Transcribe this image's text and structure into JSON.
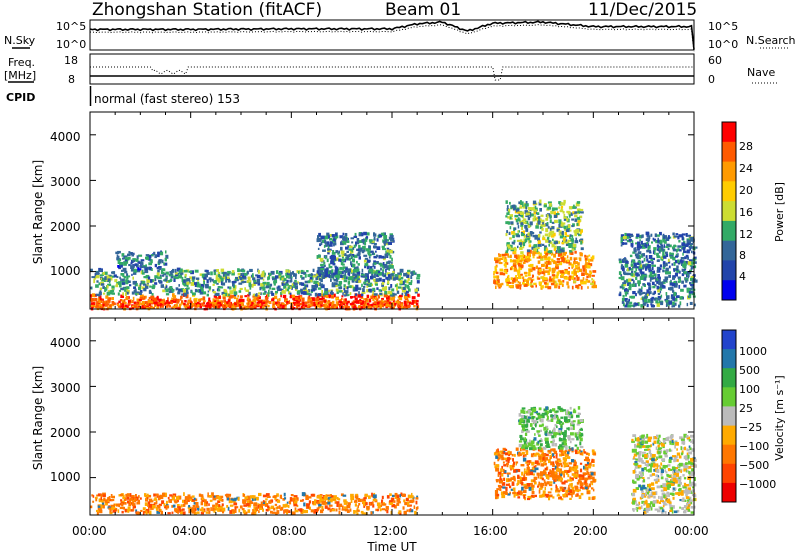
{
  "header": {
    "station": "Zhongshan Station (fitACF)",
    "beam": "Beam 01",
    "date": "11/Dec/2015"
  },
  "noise_panel": {
    "left_label": "N.Sky",
    "right_label": "N.Search",
    "y_ticks": [
      "10^5",
      "10^0"
    ],
    "right_ticks": [
      "10^5",
      "10^0"
    ]
  },
  "freq_panel": {
    "left_label_1": "Freq.",
    "left_label_2": "[MHz]",
    "left_ticks": [
      "18",
      "8"
    ],
    "right_ticks": [
      "60",
      "0"
    ],
    "right_label": "Nave"
  },
  "cpid_panel": {
    "label": "CPID",
    "text": "normal (fast stereo) 153"
  },
  "power_panel": {
    "ylabel": "Slant Range [km]",
    "y_ticks": [
      "4000",
      "3000",
      "2000",
      "1000"
    ],
    "colorbar_label": "Power [dB]",
    "colorbar_ticks": [
      "28",
      "24",
      "20",
      "16",
      "12",
      "8",
      "4"
    ],
    "colorbar_colors": [
      "#ff0000",
      "#ff5a00",
      "#ff9a00",
      "#ffcc00",
      "#ccdd33",
      "#33aa66",
      "#336699",
      "#2244aa",
      "#0000ee"
    ]
  },
  "velocity_panel": {
    "ylabel": "Slant Range [km]",
    "y_ticks": [
      "4000",
      "3000",
      "2000",
      "1000"
    ],
    "colorbar_label": "Velocity [m s⁻¹]",
    "colorbar_ticks": [
      "1000",
      "500",
      "100",
      "25",
      "−25",
      "−100",
      "−500",
      "−1000"
    ],
    "colorbar_colors": [
      "#2244cc",
      "#2277aa",
      "#33aa44",
      "#66cc33",
      "#bbbbbb",
      "#ffaa00",
      "#ff7700",
      "#ff4400",
      "#ee0000"
    ]
  },
  "x_axis": {
    "ticks": [
      "00:00",
      "04:00",
      "08:00",
      "12:00",
      "16:00",
      "20:00",
      "00:00"
    ],
    "label": "Time UT"
  },
  "chart_data": [
    {
      "type": "line",
      "name": "noise",
      "x": [
        0,
        4,
        8,
        12,
        13,
        14,
        15,
        16,
        18,
        20,
        24
      ],
      "series": [
        {
          "values": [
            3.5,
            3.5,
            3.6,
            3.6,
            4.5,
            4.8,
            3.2,
            4.6,
            4.8,
            4.0,
            4.0
          ]
        }
      ],
      "ylim": [
        0,
        5
      ],
      "xlim": [
        0,
        24
      ]
    },
    {
      "type": "heatmap",
      "name": "power",
      "xlim": [
        0,
        24
      ],
      "ylim": [
        180,
        4500
      ],
      "clim": [
        0,
        30
      ],
      "regions": [
        {
          "x": [
            0,
            13
          ],
          "y": [
            180,
            450
          ],
          "value": 26
        },
        {
          "x": [
            0,
            13
          ],
          "y": [
            450,
            1000
          ],
          "value": 10
        },
        {
          "x": [
            1,
            3
          ],
          "y": [
            1000,
            1400
          ],
          "value": 7
        },
        {
          "x": [
            9,
            12
          ],
          "y": [
            800,
            1800
          ],
          "value": 8
        },
        {
          "x": [
            16,
            20
          ],
          "y": [
            600,
            1400
          ],
          "value": 22
        },
        {
          "x": [
            16.5,
            19.5
          ],
          "y": [
            1400,
            2500
          ],
          "value": 12
        },
        {
          "x": [
            21,
            24
          ],
          "y": [
            200,
            1800
          ],
          "value": 8
        }
      ]
    },
    {
      "type": "heatmap",
      "name": "velocity",
      "xlim": [
        0,
        24
      ],
      "ylim": [
        180,
        4500
      ],
      "clim": [
        -1000,
        1000
      ],
      "regions": [
        {
          "x": [
            0,
            13
          ],
          "y": [
            180,
            600
          ],
          "value": -200
        },
        {
          "x": [
            16,
            20
          ],
          "y": [
            500,
            1600
          ],
          "value": -300
        },
        {
          "x": [
            17,
            19.5
          ],
          "y": [
            1600,
            2500
          ],
          "value": 50
        },
        {
          "x": [
            21.5,
            24
          ],
          "y": [
            200,
            1900
          ],
          "value": 0
        }
      ]
    }
  ]
}
